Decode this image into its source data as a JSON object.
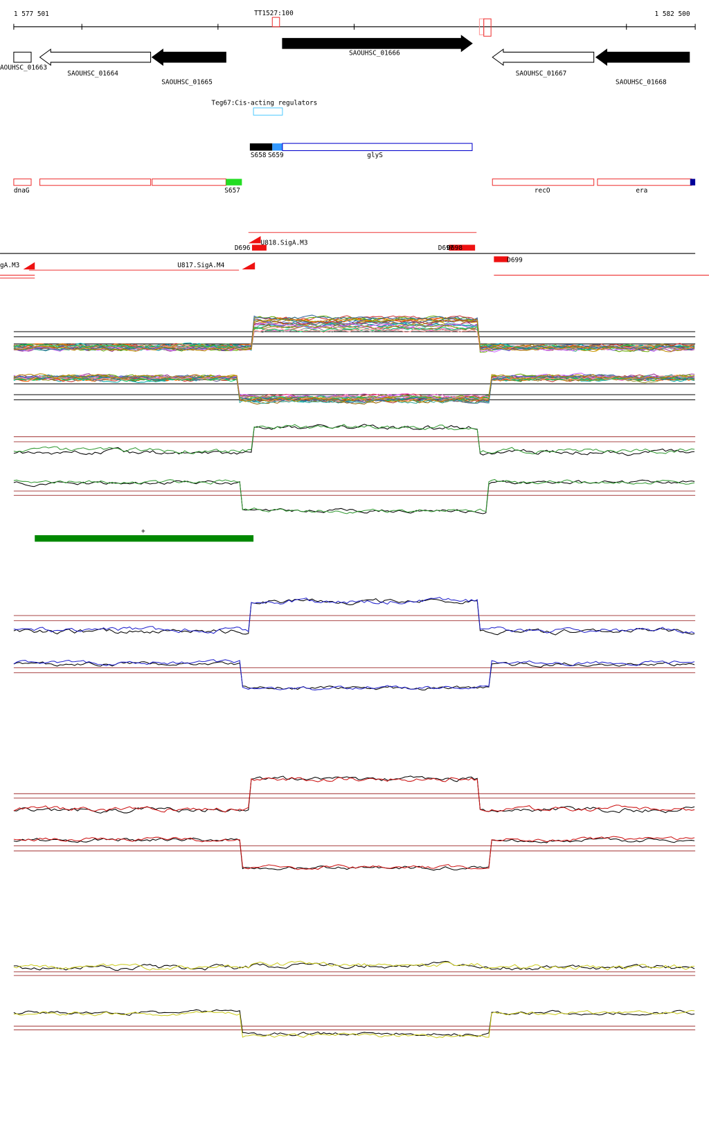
{
  "ruler": {
    "start": "1 577 501",
    "marker": "TT1527:100",
    "end": "1 582 500"
  },
  "genes": [
    "AOUHSC_01663",
    "SAOUHSC_01664",
    "SAOUHSC_01665",
    "SAOUHSC_01666",
    "SAOUHSC_01667",
    "SAOUHSC_01668"
  ],
  "regulator": "Teg67:Cis-acting regulators",
  "segments": [
    "S658",
    "S659",
    "glyS"
  ],
  "operons": [
    "dnaG",
    "S657",
    "recO",
    "era"
  ],
  "promoters": [
    "U818.SigA.M3",
    "D696",
    "D697",
    "D698",
    "gA.M3",
    "U817.SigA.M4",
    "D699"
  ],
  "strand": "+"
}
